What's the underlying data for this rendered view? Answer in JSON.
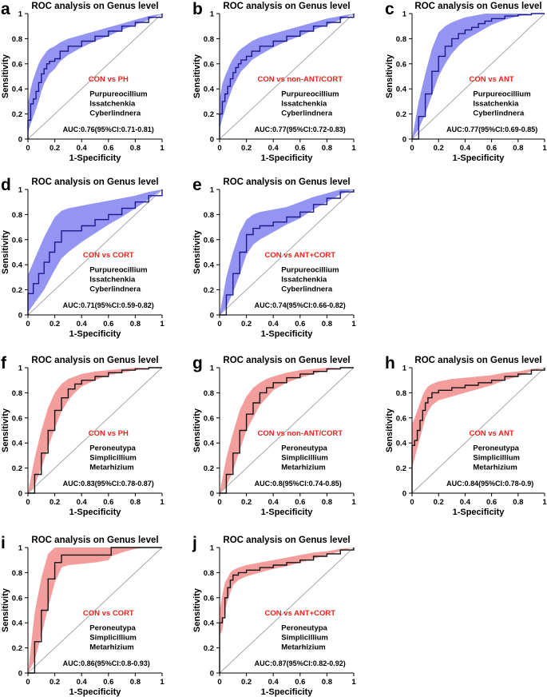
{
  "chart_data": [
    {
      "id": "a",
      "panel_letter": "a",
      "type": "line",
      "title": "ROC analysis on Genus level",
      "xlabel": "1-Specificity",
      "ylabel": "Sensitivity",
      "xlim": [
        0,
        1
      ],
      "ylim": [
        0,
        1
      ],
      "x_ticks": [
        "0",
        "0.2",
        "0.4",
        "0.6",
        "0.8",
        "1"
      ],
      "y_ticks": [
        "0",
        "0.2",
        "0.4",
        "0.6",
        "0.8",
        "1"
      ],
      "comparison": "CON vs PH",
      "genera": [
        "Purpureocillium",
        "Issatchenkia",
        "Cyberlindnera"
      ],
      "auc_text": "AUC:0.76(95%CI:0.71-0.81)",
      "band_color": "#7070ee",
      "line_color": "#1a1a8c",
      "series": {
        "x": [
          0,
          0,
          0.02,
          0.04,
          0.06,
          0.08,
          0.1,
          0.12,
          0.14,
          0.16,
          0.2,
          0.24,
          0.3,
          0.4,
          0.5,
          0.6,
          0.7,
          0.8,
          0.9,
          1
        ],
        "y": [
          0,
          0.15,
          0.28,
          0.32,
          0.38,
          0.45,
          0.52,
          0.56,
          0.6,
          0.62,
          0.64,
          0.7,
          0.74,
          0.78,
          0.82,
          0.86,
          0.9,
          0.93,
          0.97,
          1
        ],
        "lower": [
          0,
          0.05,
          0.12,
          0.18,
          0.24,
          0.3,
          0.38,
          0.44,
          0.48,
          0.52,
          0.56,
          0.62,
          0.67,
          0.73,
          0.78,
          0.82,
          0.87,
          0.91,
          0.95,
          1
        ],
        "upper": [
          0,
          0.28,
          0.4,
          0.48,
          0.54,
          0.6,
          0.64,
          0.67,
          0.7,
          0.72,
          0.74,
          0.77,
          0.8,
          0.83,
          0.86,
          0.89,
          0.92,
          0.95,
          0.98,
          1
        ]
      }
    },
    {
      "id": "b",
      "panel_letter": "b",
      "type": "line",
      "title": "ROC analysis on Genus level",
      "xlabel": "1-Specificity",
      "ylabel": "Sensitivity",
      "xlim": [
        0,
        1
      ],
      "ylim": [
        0,
        1
      ],
      "x_ticks": [
        "0",
        "0.2",
        "0.4",
        "0.6",
        "0.8",
        "1"
      ],
      "y_ticks": [
        "0",
        "0.2",
        "0.4",
        "0.6",
        "0.8",
        "1"
      ],
      "comparison": "CON vs non-ANT/CORT",
      "genera": [
        "Purpureocillium",
        "Issatchenkia",
        "Cyberlindnera"
      ],
      "auc_text": "AUC:0.77(95%CI:0.72-0.83)",
      "band_color": "#7070ee",
      "line_color": "#1a1a8c",
      "series": {
        "x": [
          0,
          0,
          0.02,
          0.04,
          0.06,
          0.08,
          0.1,
          0.12,
          0.14,
          0.16,
          0.2,
          0.24,
          0.3,
          0.4,
          0.5,
          0.6,
          0.7,
          0.8,
          0.9,
          1
        ],
        "y": [
          0,
          0.2,
          0.3,
          0.36,
          0.42,
          0.48,
          0.53,
          0.57,
          0.6,
          0.63,
          0.66,
          0.7,
          0.74,
          0.78,
          0.82,
          0.86,
          0.9,
          0.93,
          0.97,
          1
        ],
        "lower": [
          0,
          0.08,
          0.16,
          0.23,
          0.3,
          0.36,
          0.42,
          0.46,
          0.5,
          0.54,
          0.58,
          0.63,
          0.67,
          0.73,
          0.78,
          0.82,
          0.87,
          0.91,
          0.95,
          1
        ],
        "upper": [
          0,
          0.32,
          0.44,
          0.5,
          0.55,
          0.6,
          0.64,
          0.67,
          0.7,
          0.72,
          0.75,
          0.78,
          0.81,
          0.84,
          0.87,
          0.9,
          0.93,
          0.96,
          0.98,
          1
        ]
      }
    },
    {
      "id": "c",
      "panel_letter": "c",
      "type": "line",
      "title": "ROC analysis on Genus level",
      "xlabel": "1-Specificity",
      "ylabel": "Sensitivity",
      "xlim": [
        0,
        1
      ],
      "ylim": [
        0,
        1
      ],
      "x_ticks": [
        "0",
        "0.2",
        "0.4",
        "0.6",
        "0.8",
        "1"
      ],
      "y_ticks": [
        "0",
        "0.2",
        "0.4",
        "0.6",
        "0.8",
        "1"
      ],
      "comparison": "CON vs ANT",
      "genera": [
        "Purpureocillium",
        "Issatchenkia",
        "Cyberlindnera"
      ],
      "auc_text": "AUC:0.77(95%CI:0.69-0.85)",
      "band_color": "#7070ee",
      "line_color": "#1a1a8c",
      "series": {
        "x": [
          0,
          0.05,
          0.1,
          0.15,
          0.2,
          0.25,
          0.3,
          0.35,
          0.4,
          0.45,
          0.5,
          0.55,
          0.6,
          0.7,
          0.8,
          0.9,
          1
        ],
        "y": [
          0,
          0.18,
          0.36,
          0.54,
          0.66,
          0.74,
          0.8,
          0.84,
          0.87,
          0.89,
          0.92,
          0.94,
          0.96,
          0.98,
          0.99,
          1,
          1
        ],
        "lower": [
          0,
          0.08,
          0.2,
          0.35,
          0.5,
          0.6,
          0.68,
          0.74,
          0.79,
          0.82,
          0.85,
          0.88,
          0.91,
          0.95,
          0.98,
          1,
          1
        ],
        "upper": [
          0,
          0.3,
          0.52,
          0.72,
          0.85,
          0.9,
          0.93,
          0.95,
          0.97,
          0.98,
          0.99,
          1,
          1,
          1,
          1,
          1,
          1
        ]
      }
    },
    {
      "id": "d",
      "panel_letter": "d",
      "type": "line",
      "title": "ROC analysis on Genus level",
      "xlabel": "1-Specificity",
      "ylabel": "Sensitivity",
      "xlim": [
        0,
        1
      ],
      "ylim": [
        0,
        1
      ],
      "x_ticks": [
        "0",
        "0.2",
        "0.4",
        "0.6",
        "0.8",
        "1"
      ],
      "y_ticks": [
        "0",
        "0.2",
        "0.4",
        "0.6",
        "0.8",
        "1"
      ],
      "comparison": "CON vs CORT",
      "genera": [
        "Purpureocillium",
        "Issatchenkia",
        "Cyberlindnera"
      ],
      "auc_text": "AUC:0.71(95%CI:0.59-0.82)",
      "band_color": "#7070ee",
      "line_color": "#1a1a8c",
      "series": {
        "x": [
          0,
          0,
          0.04,
          0.08,
          0.12,
          0.16,
          0.2,
          0.25,
          0.3,
          0.4,
          0.5,
          0.6,
          0.7,
          0.8,
          0.9,
          1
        ],
        "y": [
          0,
          0.17,
          0.25,
          0.33,
          0.42,
          0.5,
          0.58,
          0.67,
          0.67,
          0.71,
          0.76,
          0.8,
          0.85,
          0.9,
          0.95,
          1
        ],
        "lower": [
          0,
          0.02,
          0.08,
          0.14,
          0.2,
          0.28,
          0.36,
          0.45,
          0.5,
          0.58,
          0.65,
          0.72,
          0.78,
          0.85,
          0.92,
          1
        ],
        "upper": [
          0,
          0.32,
          0.42,
          0.52,
          0.62,
          0.7,
          0.78,
          0.83,
          0.85,
          0.87,
          0.89,
          0.91,
          0.93,
          0.95,
          0.98,
          1
        ]
      }
    },
    {
      "id": "e",
      "panel_letter": "e",
      "type": "line",
      "title": "ROC analysis on Genus level",
      "xlabel": "1-Specificity",
      "ylabel": "Sensitivity",
      "xlim": [
        0,
        1
      ],
      "ylim": [
        0,
        1
      ],
      "x_ticks": [
        "0",
        "0.2",
        "0.4",
        "0.6",
        "0.8",
        "1"
      ],
      "y_ticks": [
        "0",
        "0.2",
        "0.4",
        "0.6",
        "0.8",
        "1"
      ],
      "comparison": "CON vs ANT+CORT",
      "genera": [
        "Purpureocillium",
        "Issatchenkia",
        "Cyberlindnera"
      ],
      "auc_text": "AUC:0.74(95%CI:0.66-0.82)",
      "band_color": "#7070ee",
      "line_color": "#1a1a8c",
      "series": {
        "x": [
          0,
          0.05,
          0.1,
          0.15,
          0.2,
          0.25,
          0.3,
          0.4,
          0.5,
          0.6,
          0.7,
          0.8,
          0.9,
          1
        ],
        "y": [
          0,
          0.16,
          0.33,
          0.5,
          0.64,
          0.69,
          0.71,
          0.74,
          0.78,
          0.82,
          0.88,
          0.93,
          0.98,
          1
        ],
        "lower": [
          0,
          0.06,
          0.18,
          0.32,
          0.48,
          0.56,
          0.6,
          0.66,
          0.72,
          0.77,
          0.84,
          0.9,
          0.96,
          1
        ],
        "upper": [
          0,
          0.3,
          0.5,
          0.66,
          0.76,
          0.8,
          0.82,
          0.84,
          0.86,
          0.9,
          0.94,
          0.97,
          1,
          1
        ]
      }
    },
    {
      "id": "f",
      "panel_letter": "f",
      "type": "line",
      "title": "ROC analysis on Genus level",
      "xlabel": "1-Specificity",
      "ylabel": "Sensitivity",
      "xlim": [
        0,
        1
      ],
      "ylim": [
        0,
        1
      ],
      "x_ticks": [
        "0",
        "0.2",
        "0.4",
        "0.6",
        "0.8",
        "1"
      ],
      "y_ticks": [
        "0",
        "0.2",
        "0.4",
        "0.6",
        "0.8",
        "1"
      ],
      "comparison": "CON vs PH",
      "genera": [
        "Peroneutypa",
        "Simplicillium",
        "Metarhizium"
      ],
      "auc_text": "AUC:0.83(95%CI:0.78-0.87)",
      "band_color": "#f07c7c",
      "line_color": "#141414",
      "series": {
        "x": [
          0,
          0.05,
          0.1,
          0.15,
          0.2,
          0.25,
          0.3,
          0.35,
          0.4,
          0.5,
          0.6,
          0.7,
          0.8,
          0.9,
          1
        ],
        "y": [
          0,
          0.15,
          0.32,
          0.5,
          0.66,
          0.76,
          0.83,
          0.87,
          0.9,
          0.93,
          0.96,
          0.98,
          0.99,
          1,
          1
        ],
        "lower": [
          0,
          0.06,
          0.2,
          0.36,
          0.52,
          0.65,
          0.74,
          0.8,
          0.85,
          0.9,
          0.94,
          0.96,
          0.98,
          1,
          1
        ],
        "upper": [
          0,
          0.28,
          0.5,
          0.68,
          0.8,
          0.87,
          0.91,
          0.93,
          0.95,
          0.97,
          0.98,
          0.99,
          1,
          1,
          1
        ]
      }
    },
    {
      "id": "g",
      "panel_letter": "g",
      "type": "line",
      "title": "ROC analysis on Genus level",
      "xlabel": "1-Specificity",
      "ylabel": "Sensitivity",
      "xlim": [
        0,
        1
      ],
      "ylim": [
        0,
        1
      ],
      "x_ticks": [
        "0",
        "0.2",
        "0.4",
        "0.6",
        "0.8",
        "1"
      ],
      "y_ticks": [
        "0",
        "0.2",
        "0.4",
        "0.6",
        "0.8",
        "1"
      ],
      "comparison": "CON vs non-ANT/CORT",
      "genera": [
        "Peroneutypa",
        "Simplicillium",
        "Metarhizium"
      ],
      "auc_text": "AUC:0.8(95%CI:0.74-0.85)",
      "band_color": "#f07c7c",
      "line_color": "#141414",
      "series": {
        "x": [
          0,
          0.05,
          0.1,
          0.15,
          0.2,
          0.25,
          0.3,
          0.35,
          0.4,
          0.5,
          0.6,
          0.7,
          0.8,
          0.9,
          1
        ],
        "y": [
          0,
          0.15,
          0.32,
          0.5,
          0.63,
          0.72,
          0.8,
          0.84,
          0.88,
          0.92,
          0.95,
          0.97,
          0.99,
          1,
          1
        ],
        "lower": [
          0,
          0.05,
          0.18,
          0.34,
          0.5,
          0.6,
          0.7,
          0.76,
          0.82,
          0.88,
          0.92,
          0.95,
          0.98,
          1,
          1
        ],
        "upper": [
          0,
          0.28,
          0.48,
          0.66,
          0.77,
          0.84,
          0.88,
          0.91,
          0.93,
          0.96,
          0.98,
          0.99,
          1,
          1,
          1
        ]
      }
    },
    {
      "id": "h",
      "panel_letter": "h",
      "type": "line",
      "title": "ROC analysis on Genus level",
      "xlabel": "1-Specificity",
      "ylabel": "Sensitivity",
      "xlim": [
        0,
        1
      ],
      "ylim": [
        0,
        1
      ],
      "x_ticks": [
        "0",
        "0.2",
        "0.4",
        "0.6",
        "0.8",
        "1"
      ],
      "y_ticks": [
        "0",
        "0.2",
        "0.4",
        "0.6",
        "0.8",
        "1"
      ],
      "comparison": "CON vs ANT",
      "genera": [
        "Peroneutypa",
        "Simplicillium",
        "Metarhizium"
      ],
      "auc_text": "AUC:0.84(95%CI:0.78-0.9)",
      "band_color": "#f07c7c",
      "line_color": "#141414",
      "series": {
        "x": [
          0,
          0,
          0.02,
          0.04,
          0.06,
          0.08,
          0.1,
          0.12,
          0.15,
          0.2,
          0.3,
          0.4,
          0.5,
          0.6,
          0.7,
          0.8,
          0.9,
          1
        ],
        "y": [
          0,
          0.38,
          0.42,
          0.5,
          0.58,
          0.66,
          0.72,
          0.76,
          0.8,
          0.82,
          0.84,
          0.86,
          0.88,
          0.9,
          0.93,
          0.95,
          0.98,
          1
        ],
        "lower": [
          0,
          0.2,
          0.28,
          0.36,
          0.44,
          0.52,
          0.6,
          0.65,
          0.7,
          0.74,
          0.77,
          0.8,
          0.83,
          0.86,
          0.9,
          0.93,
          0.97,
          1
        ],
        "upper": [
          0,
          0.55,
          0.6,
          0.66,
          0.72,
          0.78,
          0.82,
          0.85,
          0.87,
          0.89,
          0.91,
          0.92,
          0.93,
          0.94,
          0.96,
          0.97,
          0.99,
          1
        ]
      }
    },
    {
      "id": "i",
      "panel_letter": "i",
      "type": "line",
      "title": "ROC analysis on Genus level",
      "xlabel": "1-Specificity",
      "ylabel": "Sensitivity",
      "xlim": [
        0,
        1
      ],
      "ylim": [
        0,
        1
      ],
      "x_ticks": [
        "0",
        "0.2",
        "0.4",
        "0.6",
        "0.8",
        "1"
      ],
      "y_ticks": [
        "0",
        "0.2",
        "0.4",
        "0.6",
        "0.8",
        "1"
      ],
      "comparison": "CON vs CORT",
      "genera": [
        "Peroneutypa",
        "Simplicillium",
        "Metarhizium"
      ],
      "auc_text": "AUC:0.86(95%CI:0.8-0.93)",
      "band_color": "#f07c7c",
      "line_color": "#141414",
      "series": {
        "x": [
          0,
          0.05,
          0.1,
          0.15,
          0.2,
          0.25,
          0.3,
          0.4,
          0.5,
          0.6,
          0.62,
          0.7,
          0.8,
          0.9,
          1
        ],
        "y": [
          0,
          0.25,
          0.5,
          0.75,
          0.88,
          0.94,
          0.94,
          0.94,
          0.94,
          0.94,
          1,
          1,
          1,
          1,
          1
        ],
        "lower": [
          0,
          0.1,
          0.3,
          0.52,
          0.72,
          0.84,
          0.86,
          0.87,
          0.88,
          0.9,
          0.93,
          0.96,
          0.99,
          1,
          1
        ],
        "upper": [
          0,
          0.48,
          0.76,
          0.95,
          1,
          1,
          1,
          1,
          1,
          1,
          1,
          1,
          1,
          1,
          1
        ]
      }
    },
    {
      "id": "j",
      "panel_letter": "j",
      "type": "line",
      "title": "ROC analysis on Genus level",
      "xlabel": "1-Specificity",
      "ylabel": "Sensitivity",
      "xlim": [
        0,
        1
      ],
      "ylim": [
        0,
        1
      ],
      "x_ticks": [
        "0",
        "0.2",
        "0.4",
        "0.6",
        "0.8",
        "1"
      ],
      "y_ticks": [
        "0",
        "0.2",
        "0.4",
        "0.6",
        "0.8",
        "1"
      ],
      "comparison": "CON vs ANT+CORT",
      "genera": [
        "Peroneutypa",
        "Simplicillium",
        "Metarhizium"
      ],
      "auc_text": "AUC:0.87(95%CI:0.82-0.92)",
      "band_color": "#f07c7c",
      "line_color": "#141414",
      "series": {
        "x": [
          0,
          0,
          0.02,
          0.04,
          0.06,
          0.08,
          0.1,
          0.14,
          0.2,
          0.3,
          0.4,
          0.5,
          0.6,
          0.7,
          0.8,
          0.9,
          1
        ],
        "y": [
          0,
          0.4,
          0.44,
          0.6,
          0.68,
          0.74,
          0.78,
          0.8,
          0.82,
          0.84,
          0.86,
          0.88,
          0.9,
          0.93,
          0.95,
          0.98,
          1
        ],
        "lower": [
          0,
          0.3,
          0.34,
          0.5,
          0.58,
          0.64,
          0.7,
          0.74,
          0.77,
          0.8,
          0.83,
          0.85,
          0.88,
          0.91,
          0.94,
          0.97,
          1
        ],
        "upper": [
          0,
          0.5,
          0.62,
          0.72,
          0.76,
          0.8,
          0.82,
          0.84,
          0.86,
          0.88,
          0.9,
          0.92,
          0.94,
          0.96,
          0.97,
          0.99,
          1
        ]
      }
    }
  ]
}
